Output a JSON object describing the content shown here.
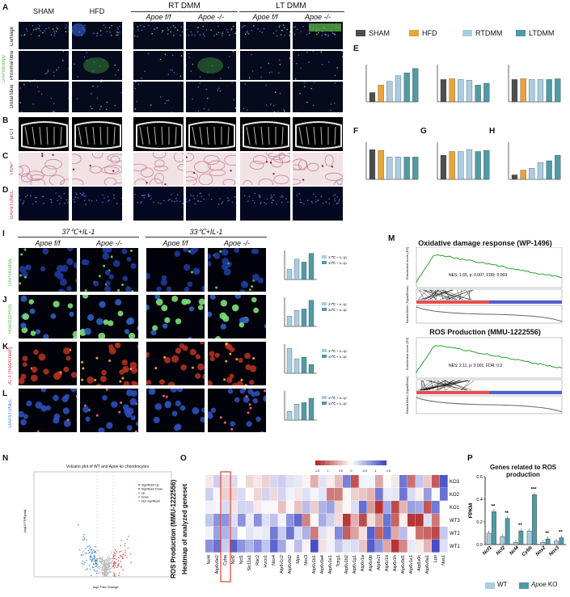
{
  "labels": {
    "A": "A",
    "B": "B",
    "C": "C",
    "D": "D",
    "E": "E",
    "F": "F",
    "G": "G",
    "H": "H",
    "I": "I",
    "J": "J",
    "K": "K",
    "L": "L",
    "M": "M",
    "N": "N",
    "O": "O",
    "P": "P"
  },
  "top_groups": {
    "sham": "SHAM",
    "hfd": "HFD",
    "rt_dmm": "RT DMM",
    "lt_dmm": "LT DMM",
    "apoe_ff_1": "Apoe f/f",
    "apoe_ko_1": "Apoe -/-",
    "apoe_ff_2": "Apoe f/f",
    "apoe_ko_2": "Apoe -/-"
  },
  "row_labels": {
    "cartilage": "Cartilage",
    "proximal": "Proximal tibia",
    "distal": "Distal tibial",
    "a_stain": "DAPI/Bodipy",
    "b": "μ CT",
    "c": "TRAP",
    "d": "DAPI/TUNEL"
  },
  "legend_top": {
    "items": [
      {
        "name": "SHAM",
        "color": "#4d4d4d"
      },
      {
        "name": "HFD",
        "color": "#e8a33a"
      },
      {
        "name": "RTDMM",
        "color": "#a8cde0"
      },
      {
        "name": "LTDMM",
        "color": "#4f9ba6"
      }
    ]
  },
  "cell_groups": {
    "c37": "37℃+IL-1",
    "c33": "33℃+IL-1",
    "ff1": "Apoe f/f",
    "ko1": "Apoe -/-",
    "ff2": "Apoe f/f",
    "ko2": "Apoe -/-"
  },
  "cell_rows": {
    "i": "DAPI/Bodipy",
    "j": "Hoechst/ROS",
    "k": "JC-1 (Red/Green)",
    "l": "DAPI/TUNEL"
  },
  "small_legend": {
    "a": "37℃ + IL-1β",
    "b": "33℃ + IL-1β",
    "colors": [
      "#a8cde0",
      "#4f9ba6"
    ]
  },
  "gsea": {
    "m1_title": "Oxidative damage response (WP-1496)",
    "m1_stats": "NES: 1.65, p: 0.007, FDR: 0.069",
    "m2_title": "ROS Production (MMU-1222556)",
    "m2_stats": "NES: 2.11, p: 0.001, FDR: 0.0",
    "ylab_top": "Enrichment score (ES)",
    "ylab_bottom": "Ranked Metric (Signal2Noise)"
  },
  "volcano": {
    "title": "Volcano plot of WT and Apoe ko chondrocytes",
    "xlabel": "log2 Fold Change",
    "ylabel": "-log10 FDR/padj",
    "legend": [
      "Significant Up",
      "Significant Down",
      "Up",
      "Down",
      "Non significant"
    ]
  },
  "heatmap": {
    "title1": "ROS Production (MMU-1222556)",
    "title2": "Heatmap of analyzed geneset",
    "samples": [
      "KO3",
      "KO2",
      "KO1",
      "WT3",
      "WT2",
      "WT1"
    ],
    "genes": [
      "Ncf4",
      "Atp6v0e2",
      "Cyba",
      "Ncf2",
      "Ncf1",
      "Slc11a1",
      "Rac2",
      "Hvcn1",
      "Nox4",
      "Atp6v1c2",
      "Atp6v0d2",
      "Mpo",
      "Nox3",
      "Atp6v1b1",
      "Atp6v0a4",
      "Atp6v1e1",
      "Tcirg1",
      "Atp6v1b2",
      "Atp6v1g1",
      "Atp6v1a",
      "Atp6v0b",
      "Atp6v1f",
      "Atp6v1d",
      "Atp6v1h",
      "Atp6v0d1",
      "Atp6v1e1",
      "Atp6v0c",
      "Atp6v0a1",
      "Lpo",
      "Nos1"
    ],
    "scale_labels": [
      "1.5",
      "1",
      "0.5",
      "0",
      "-0.5",
      "-1",
      "-1.5"
    ]
  },
  "chart_data": {
    "type": "bar",
    "title": "Genes related to ROS production",
    "ylabel": "FPKM",
    "categories": [
      "Ncf1",
      "Ncf2",
      "Ncf4",
      "Cybb",
      "Nox2",
      "Nox3"
    ],
    "series": [
      {
        "name": "WT",
        "color": "#a8cde0",
        "values": [
          0.1,
          0.07,
          0.02,
          0.12,
          0.02,
          0.03
        ]
      },
      {
        "name": "Apoe KO",
        "color": "#4f9ba6",
        "values": [
          0.29,
          0.23,
          0.12,
          0.44,
          0.05,
          0.06
        ]
      }
    ],
    "ylim": [
      0,
      0.6
    ],
    "yticks": [
      "0.0",
      "0.2",
      "0.4",
      "0.6"
    ],
    "significance": [
      "**",
      "**",
      "**",
      "***",
      "**",
      "**"
    ],
    "legend": {
      "wt": "WT",
      "ko_italic": "Apoe",
      "ko_rest": " KO"
    }
  }
}
